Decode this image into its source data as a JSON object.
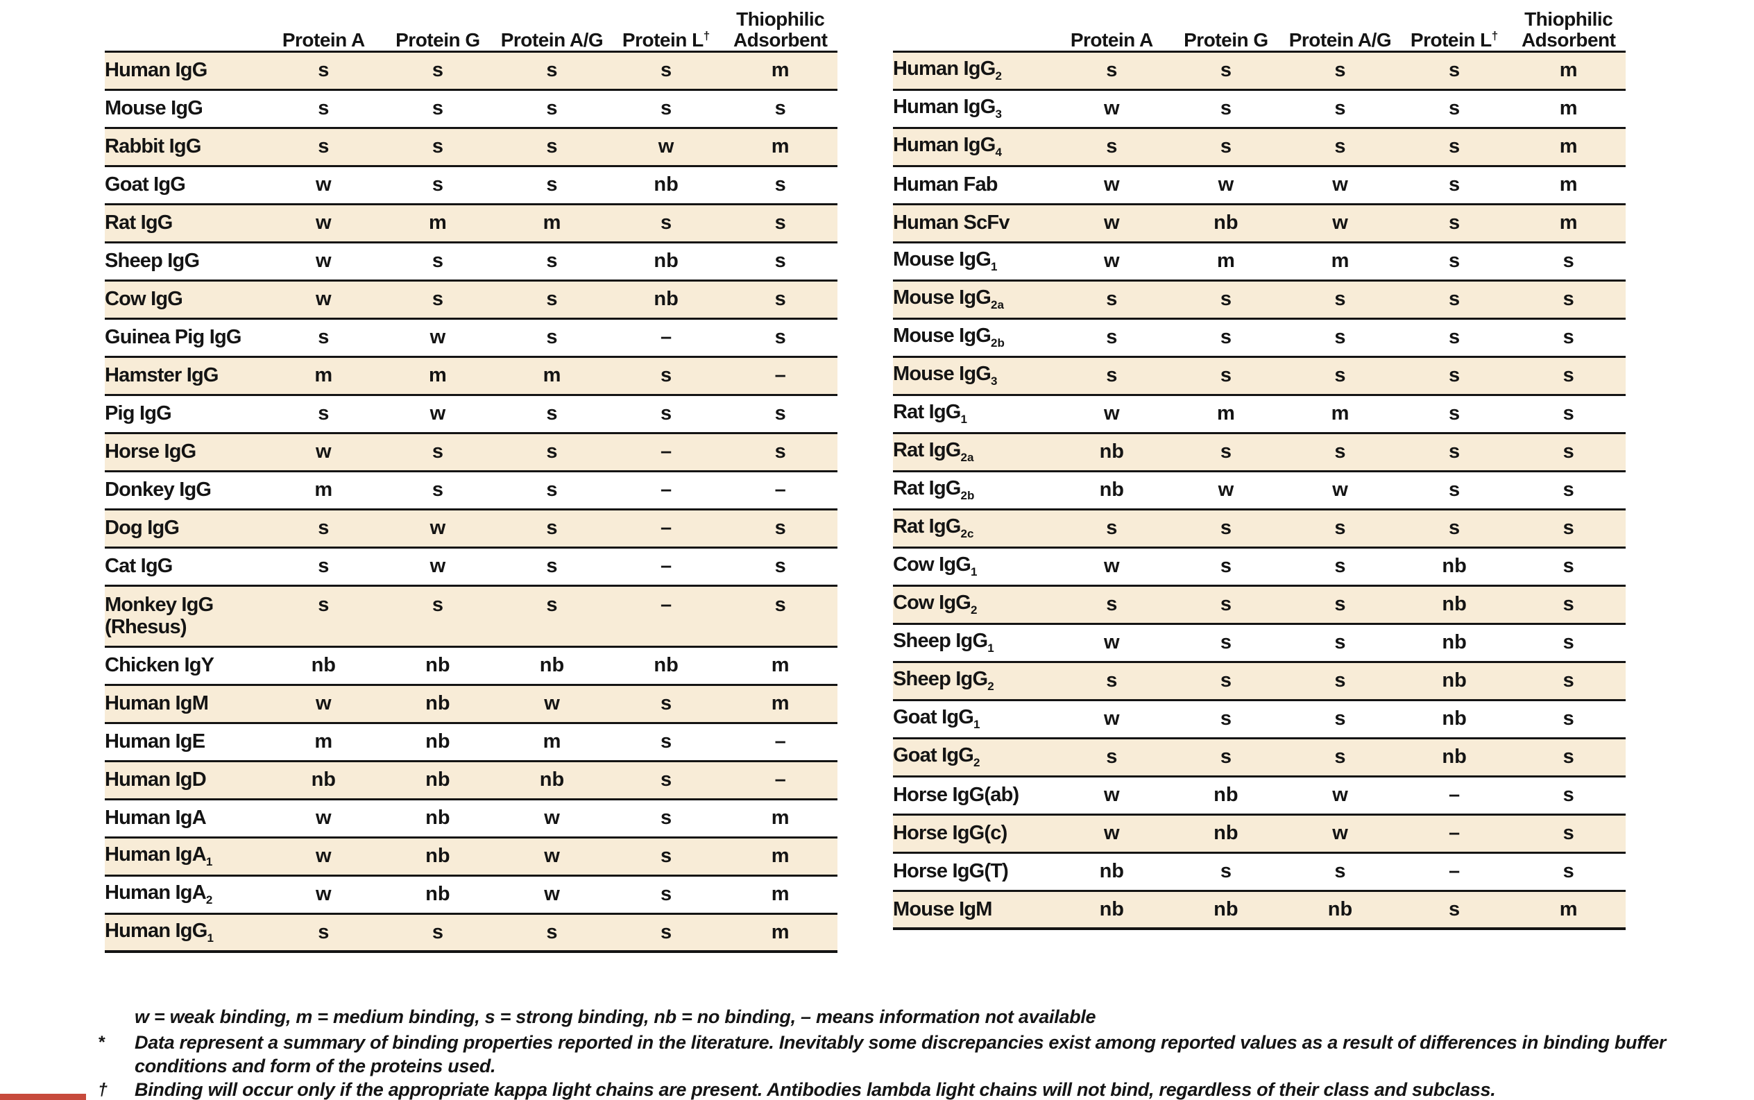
{
  "colors": {
    "background": "#ffffff",
    "row_shade": "#f8ecd7",
    "rule": "#141414",
    "text": "#141414",
    "accent_bar": "#c74a3c"
  },
  "columns": [
    {
      "label": "Protein A"
    },
    {
      "label": "Protein G"
    },
    {
      "label": "Protein A/G"
    },
    {
      "label": "Protein L",
      "sup": "†"
    },
    {
      "label": "Thiophilic Adsorbent"
    }
  ],
  "left_table": {
    "rows": [
      {
        "label": "Human IgG",
        "values": [
          "s",
          "s",
          "s",
          "s",
          "m"
        ]
      },
      {
        "label": "Mouse IgG",
        "values": [
          "s",
          "s",
          "s",
          "s",
          "s"
        ]
      },
      {
        "label": "Rabbit IgG",
        "values": [
          "s",
          "s",
          "s",
          "w",
          "m"
        ]
      },
      {
        "label": "Goat IgG",
        "values": [
          "w",
          "s",
          "s",
          "nb",
          "s"
        ]
      },
      {
        "label": "Rat IgG",
        "values": [
          "w",
          "m",
          "m",
          "s",
          "s"
        ]
      },
      {
        "label": "Sheep IgG",
        "values": [
          "w",
          "s",
          "s",
          "nb",
          "s"
        ]
      },
      {
        "label": "Cow IgG",
        "values": [
          "w",
          "s",
          "s",
          "nb",
          "s"
        ]
      },
      {
        "label": "Guinea Pig IgG",
        "values": [
          "s",
          "w",
          "s",
          "–",
          "s"
        ]
      },
      {
        "label": "Hamster IgG",
        "values": [
          "m",
          "m",
          "m",
          "s",
          "–"
        ]
      },
      {
        "label": "Pig IgG",
        "values": [
          "s",
          "w",
          "s",
          "s",
          "s"
        ]
      },
      {
        "label": "Horse IgG",
        "values": [
          "w",
          "s",
          "s",
          "–",
          "s"
        ]
      },
      {
        "label": "Donkey IgG",
        "values": [
          "m",
          "s",
          "s",
          "–",
          "–"
        ]
      },
      {
        "label": "Dog IgG",
        "values": [
          "s",
          "w",
          "s",
          "–",
          "s"
        ]
      },
      {
        "label": "Cat IgG",
        "values": [
          "s",
          "w",
          "s",
          "–",
          "s"
        ]
      },
      {
        "label": "Monkey IgG",
        "label2": "(Rhesus)",
        "values": [
          "s",
          "s",
          "s",
          "–",
          "s"
        ]
      },
      {
        "label": "Chicken IgY",
        "values": [
          "nb",
          "nb",
          "nb",
          "nb",
          "m"
        ]
      },
      {
        "label": "Human IgM",
        "values": [
          "w",
          "nb",
          "w",
          "s",
          "m"
        ]
      },
      {
        "label": "Human IgE",
        "values": [
          "m",
          "nb",
          "m",
          "s",
          "–"
        ]
      },
      {
        "label": "Human IgD",
        "values": [
          "nb",
          "nb",
          "nb",
          "s",
          "–"
        ]
      },
      {
        "label": "Human IgA",
        "values": [
          "w",
          "nb",
          "w",
          "s",
          "m"
        ]
      },
      {
        "label": "Human IgA",
        "sub": "1",
        "values": [
          "w",
          "nb",
          "w",
          "s",
          "m"
        ]
      },
      {
        "label": "Human IgA",
        "sub": "2",
        "values": [
          "w",
          "nb",
          "w",
          "s",
          "m"
        ]
      },
      {
        "label": "Human IgG",
        "sub": "1",
        "values": [
          "s",
          "s",
          "s",
          "s",
          "m"
        ]
      }
    ]
  },
  "right_table": {
    "rows": [
      {
        "label": "Human IgG",
        "sub": "2",
        "values": [
          "s",
          "s",
          "s",
          "s",
          "m"
        ]
      },
      {
        "label": "Human IgG",
        "sub": "3",
        "values": [
          "w",
          "s",
          "s",
          "s",
          "m"
        ]
      },
      {
        "label": "Human IgG",
        "sub": "4",
        "values": [
          "s",
          "s",
          "s",
          "s",
          "m"
        ]
      },
      {
        "label": "Human Fab",
        "values": [
          "w",
          "w",
          "w",
          "s",
          "m"
        ]
      },
      {
        "label": "Human ScFv",
        "values": [
          "w",
          "nb",
          "w",
          "s",
          "m"
        ]
      },
      {
        "label": "Mouse IgG",
        "sub": "1",
        "values": [
          "w",
          "m",
          "m",
          "s",
          "s"
        ]
      },
      {
        "label": "Mouse IgG",
        "sub": "2a",
        "values": [
          "s",
          "s",
          "s",
          "s",
          "s"
        ]
      },
      {
        "label": "Mouse IgG",
        "sub": "2b",
        "values": [
          "s",
          "s",
          "s",
          "s",
          "s"
        ]
      },
      {
        "label": "Mouse IgG",
        "sub": "3",
        "values": [
          "s",
          "s",
          "s",
          "s",
          "s"
        ]
      },
      {
        "label": "Rat IgG",
        "sub": "1",
        "values": [
          "w",
          "m",
          "m",
          "s",
          "s"
        ]
      },
      {
        "label": "Rat IgG",
        "sub": "2a",
        "values": [
          "nb",
          "s",
          "s",
          "s",
          "s"
        ]
      },
      {
        "label": "Rat IgG",
        "sub": "2b",
        "values": [
          "nb",
          "w",
          "w",
          "s",
          "s"
        ]
      },
      {
        "label": "Rat IgG",
        "sub": "2c",
        "values": [
          "s",
          "s",
          "s",
          "s",
          "s"
        ]
      },
      {
        "label": "Cow IgG",
        "sub": "1",
        "values": [
          "w",
          "s",
          "s",
          "nb",
          "s"
        ]
      },
      {
        "label": "Cow IgG",
        "sub": "2",
        "values": [
          "s",
          "s",
          "s",
          "nb",
          "s"
        ]
      },
      {
        "label": "Sheep IgG",
        "sub": "1",
        "values": [
          "w",
          "s",
          "s",
          "nb",
          "s"
        ]
      },
      {
        "label": "Sheep IgG",
        "sub": "2",
        "values": [
          "s",
          "s",
          "s",
          "nb",
          "s"
        ]
      },
      {
        "label": "Goat IgG",
        "sub": "1",
        "values": [
          "w",
          "s",
          "s",
          "nb",
          "s"
        ]
      },
      {
        "label": "Goat IgG",
        "sub": "2",
        "values": [
          "s",
          "s",
          "s",
          "nb",
          "s"
        ]
      },
      {
        "label": "Horse IgG(ab)",
        "values": [
          "w",
          "nb",
          "w",
          "–",
          "s"
        ]
      },
      {
        "label": "Horse IgG(c)",
        "values": [
          "w",
          "nb",
          "w",
          "–",
          "s"
        ]
      },
      {
        "label": "Horse IgG(T)",
        "values": [
          "nb",
          "s",
          "s",
          "–",
          "s"
        ]
      },
      {
        "label": "Mouse IgM",
        "values": [
          "nb",
          "nb",
          "nb",
          "s",
          "m"
        ]
      }
    ]
  },
  "legend": "w = weak binding, m = medium binding, s = strong binding, nb = no binding, – means information not available",
  "footnotes": [
    {
      "marker": "*",
      "text": "Data represent a summary of binding properties reported in the literature. Inevitably some discrepancies exist among reported values as a result of differences in binding buffer conditions and form of the proteins used."
    },
    {
      "marker": "†",
      "text": "Binding will occur only if the appropriate kappa light chains are present. Antibodies lambda light chains will not bind, regardless of their class and subclass."
    }
  ]
}
